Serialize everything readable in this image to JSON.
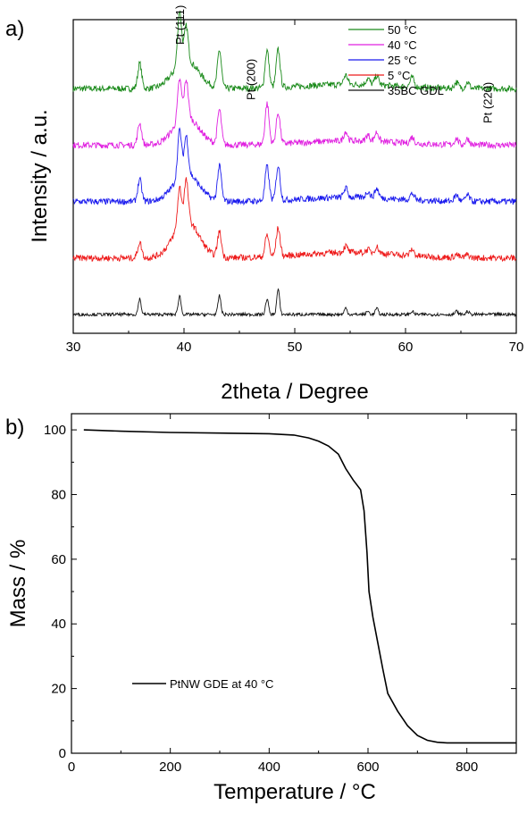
{
  "chart_data": [
    {
      "type": "line",
      "panel_label": "a)",
      "title": "",
      "xlabel": "2theta / Degree",
      "ylabel": "Intensity / a.u.",
      "xlim": [
        30,
        70
      ],
      "xticks": [
        30,
        40,
        50,
        60,
        70
      ],
      "yticks_shown": false,
      "legend_position": "top-right",
      "peaks": [
        36.0,
        39.6,
        40.2,
        43.2,
        47.5,
        48.5,
        54.6,
        56.6,
        57.4,
        60.6,
        64.6,
        65.6,
        68.0
      ],
      "series": [
        {
          "name": "50 °C",
          "color": "#1a8a1a",
          "offset": 0.78,
          "amorphous": 0.09,
          "noise": 0.01
        },
        {
          "name": "40 °C",
          "color": "#e020e0",
          "offset": 0.6,
          "amorphous": 0.09,
          "noise": 0.01
        },
        {
          "name": "25 °C",
          "color": "#1a1aee",
          "offset": 0.42,
          "amorphous": 0.09,
          "noise": 0.01
        },
        {
          "name": "5 °C",
          "color": "#ee1a1a",
          "offset": 0.24,
          "amorphous": 0.12,
          "noise": 0.01
        },
        {
          "name": "35BC GDL",
          "color": "#111111",
          "offset": 0.06,
          "amorphous": 0.0,
          "noise": 0.005
        }
      ],
      "annotations": [
        {
          "text": "Pt (111)",
          "x": 40.0
        },
        {
          "text": "Pt (200)",
          "x": 46.4
        },
        {
          "text": "Pt (220)",
          "x": 67.8
        }
      ]
    },
    {
      "type": "line",
      "panel_label": "b)",
      "title": "",
      "xlabel": "Temperature / °C",
      "ylabel": "Mass / %",
      "xlim": [
        0,
        900
      ],
      "ylim": [
        0,
        105
      ],
      "xticks": [
        0,
        200,
        400,
        600,
        800
      ],
      "yticks": [
        0,
        20,
        40,
        60,
        80,
        100
      ],
      "legend_position": "lower-left",
      "series": [
        {
          "name": "PtNW GDE at 40 °C",
          "color": "#000000",
          "x": [
            25,
            100,
            200,
            300,
            400,
            450,
            480,
            500,
            520,
            540,
            555,
            570,
            585,
            592,
            598,
            602,
            610,
            620,
            630,
            640,
            660,
            680,
            700,
            720,
            740,
            760,
            800,
            850,
            900
          ],
          "y": [
            100,
            99.6,
            99.2,
            99.0,
            98.8,
            98.4,
            97.5,
            96.5,
            95.0,
            92.5,
            88.0,
            84.5,
            81.5,
            75.0,
            62.0,
            50.0,
            42.0,
            34.0,
            26.0,
            18.5,
            13.0,
            8.5,
            5.5,
            4.0,
            3.4,
            3.2,
            3.2,
            3.2,
            3.2
          ]
        }
      ]
    }
  ]
}
